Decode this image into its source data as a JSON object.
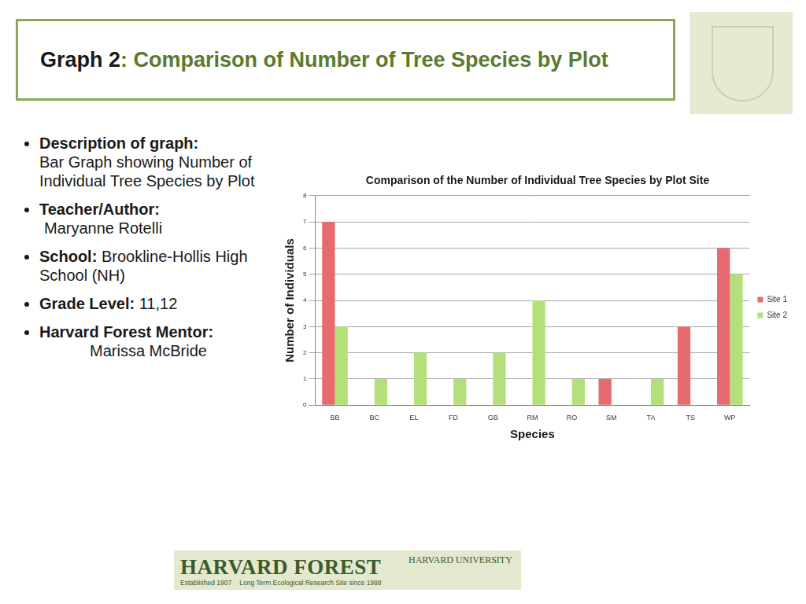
{
  "header": {
    "title_lead": "Graph 2",
    "title_rest": ": Comparison of Number of Tree Species by Plot"
  },
  "bullets": [
    {
      "label": "Description of graph:",
      "text": "Bar Graph showing Number of Individual Tree Species by Plot"
    },
    {
      "label": "Teacher/Author:",
      "text": "Maryanne Rotelli"
    },
    {
      "label": "School:",
      "text": "Brookline-Hollis High School (NH)"
    },
    {
      "label": "Grade Level:",
      "text": "11,12"
    },
    {
      "label": "Harvard Forest Mentor:",
      "text": "Marissa McBride"
    }
  ],
  "logo": {
    "name": "Harvard Forest",
    "university": "Harvard University",
    "established": "Established 1907",
    "ltr": "Long Term Ecological Research Site since 1988"
  },
  "chart_data": {
    "type": "bar",
    "title": "Comparison of the Number of Individual Tree Species by Plot Site",
    "x_label": "Species",
    "y_label": "Number of Individuals",
    "categories": [
      "BB",
      "BC",
      "EL",
      "FD",
      "GB",
      "RM",
      "RO",
      "SM",
      "TA",
      "TS",
      "WP"
    ],
    "series": [
      {
        "name": "Site 1",
        "color": "#e56b6f",
        "values": [
          7,
          0,
          0,
          0,
          0,
          0,
          0,
          1,
          0,
          3,
          6
        ]
      },
      {
        "name": "Site 2",
        "color": "#b3e07a",
        "values": [
          3,
          1,
          2,
          1,
          2,
          4,
          1,
          0,
          1,
          0,
          5
        ]
      }
    ],
    "ylim": [
      0,
      8
    ],
    "yticks": [
      0,
      1,
      2,
      3,
      4,
      5,
      6,
      7,
      8
    ],
    "grid": true,
    "legend": "right"
  }
}
